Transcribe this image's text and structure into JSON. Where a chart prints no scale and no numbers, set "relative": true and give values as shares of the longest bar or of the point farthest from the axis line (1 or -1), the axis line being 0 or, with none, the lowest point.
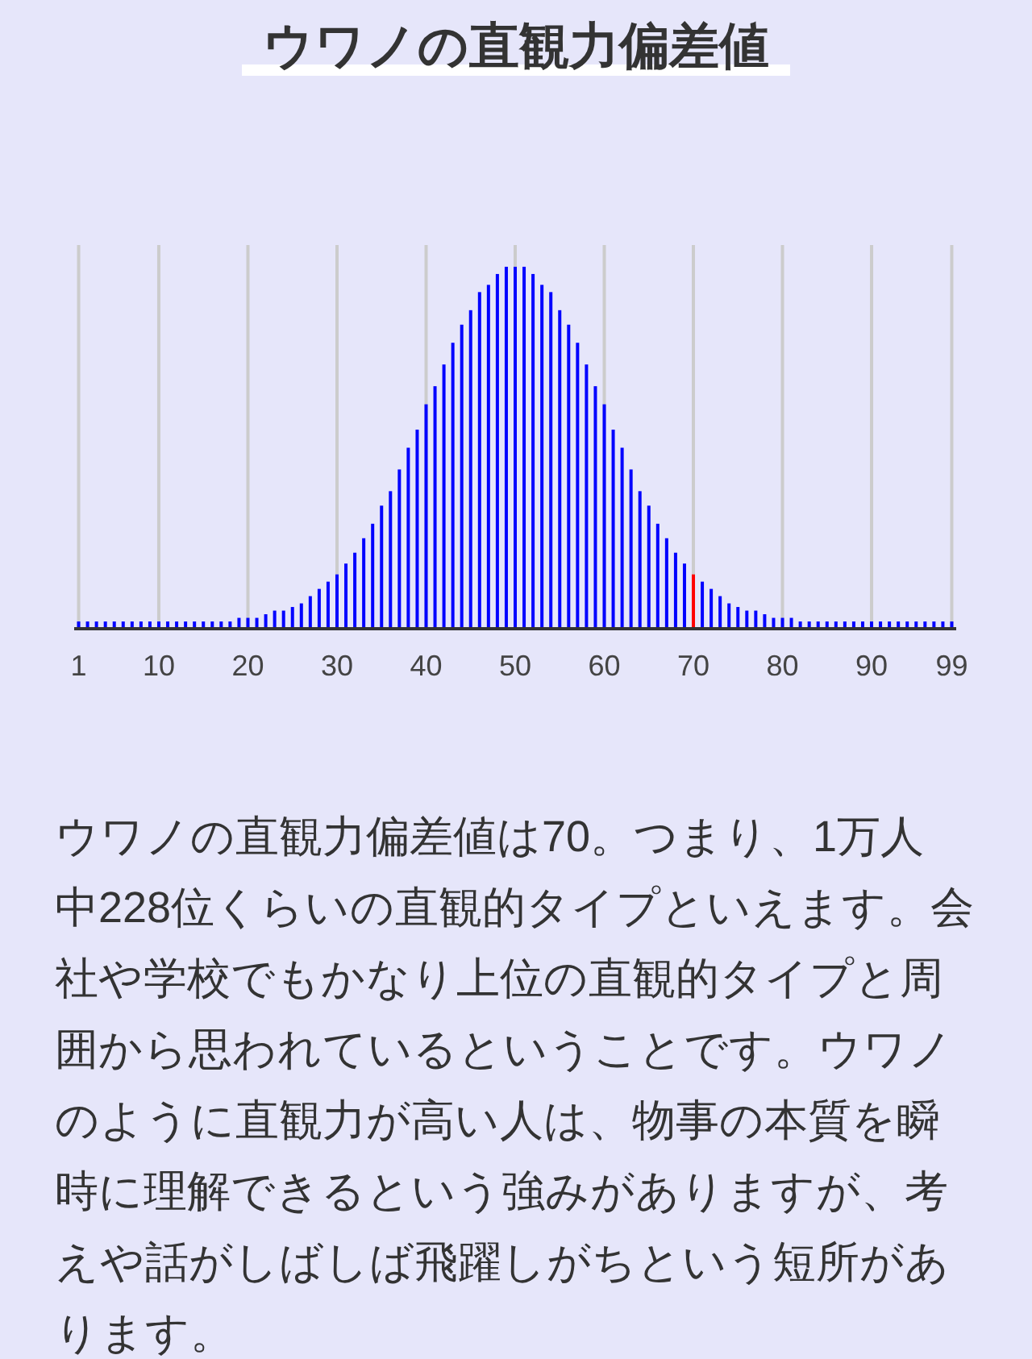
{
  "chart_data": {
    "type": "bar",
    "title": "ウワノの直観力偏差値",
    "x": [
      1,
      2,
      3,
      4,
      5,
      6,
      7,
      8,
      9,
      10,
      11,
      12,
      13,
      14,
      15,
      16,
      17,
      18,
      19,
      20,
      21,
      22,
      23,
      24,
      25,
      26,
      27,
      28,
      29,
      30,
      31,
      32,
      33,
      34,
      35,
      36,
      37,
      38,
      39,
      40,
      41,
      42,
      43,
      44,
      45,
      46,
      47,
      48,
      49,
      50,
      51,
      52,
      53,
      54,
      55,
      56,
      57,
      58,
      59,
      60,
      61,
      62,
      63,
      64,
      65,
      66,
      67,
      68,
      69,
      70,
      71,
      72,
      73,
      74,
      75,
      76,
      77,
      78,
      79,
      80,
      81,
      82,
      83,
      84,
      85,
      86,
      87,
      88,
      89,
      90,
      91,
      92,
      93,
      94,
      95,
      96,
      97,
      98,
      99
    ],
    "values": [
      0.02,
      0.02,
      0.02,
      0.02,
      0.02,
      0.02,
      0.02,
      0.02,
      0.02,
      0.02,
      0.02,
      0.02,
      0.02,
      0.02,
      0.02,
      0.02,
      0.02,
      0.02,
      0.03,
      0.03,
      0.03,
      0.04,
      0.05,
      0.05,
      0.06,
      0.07,
      0.09,
      0.11,
      0.13,
      0.15,
      0.18,
      0.21,
      0.25,
      0.29,
      0.34,
      0.38,
      0.44,
      0.5,
      0.55,
      0.62,
      0.67,
      0.73,
      0.79,
      0.84,
      0.88,
      0.93,
      0.95,
      0.98,
      1,
      1,
      1,
      0.98,
      0.95,
      0.93,
      0.88,
      0.84,
      0.79,
      0.73,
      0.67,
      0.62,
      0.55,
      0.5,
      0.44,
      0.38,
      0.34,
      0.29,
      0.25,
      0.21,
      0.18,
      0.15,
      0.13,
      0.11,
      0.09,
      0.07,
      0.06,
      0.05,
      0.05,
      0.04,
      0.03,
      0.03,
      0.03,
      0.02,
      0.02,
      0.02,
      0.02,
      0.02,
      0.02,
      0.02,
      0.02,
      0.02,
      0.02,
      0.02,
      0.02,
      0.02,
      0.02,
      0.02,
      0.02,
      0.02,
      0.02
    ],
    "colors": [
      "#0000ff",
      "#0000ff",
      "#0000ff",
      "#0000ff",
      "#0000ff",
      "#0000ff",
      "#0000ff",
      "#0000ff",
      "#0000ff",
      "#0000ff",
      "#0000ff",
      "#0000ff",
      "#0000ff",
      "#0000ff",
      "#0000ff",
      "#0000ff",
      "#0000ff",
      "#0000ff",
      "#0000ff",
      "#0000ff",
      "#0000ff",
      "#0000ff",
      "#0000ff",
      "#0000ff",
      "#0000ff",
      "#0000ff",
      "#0000ff",
      "#0000ff",
      "#0000ff",
      "#0000ff",
      "#0000ff",
      "#0000ff",
      "#0000ff",
      "#0000ff",
      "#0000ff",
      "#0000ff",
      "#0000ff",
      "#0000ff",
      "#0000ff",
      "#0000ff",
      "#0000ff",
      "#0000ff",
      "#0000ff",
      "#0000ff",
      "#0000ff",
      "#0000ff",
      "#0000ff",
      "#0000ff",
      "#0000ff",
      "#0000ff",
      "#0000ff",
      "#0000ff",
      "#0000ff",
      "#0000ff",
      "#0000ff",
      "#0000ff",
      "#0000ff",
      "#0000ff",
      "#0000ff",
      "#0000ff",
      "#0000ff",
      "#0000ff",
      "#0000ff",
      "#0000ff",
      "#0000ff",
      "#0000ff",
      "#0000ff",
      "#0000ff",
      "#0000ff",
      "#ff0000",
      "#0000ff",
      "#0000ff",
      "#0000ff",
      "#0000ff",
      "#0000ff",
      "#0000ff",
      "#0000ff",
      "#0000ff",
      "#0000ff",
      "#0000ff",
      "#0000ff",
      "#0000ff",
      "#0000ff",
      "#0000ff",
      "#0000ff",
      "#0000ff",
      "#0000ff",
      "#0000ff",
      "#0000ff",
      "#0000ff",
      "#0000ff",
      "#0000ff",
      "#0000ff",
      "#0000ff",
      "#0000ff",
      "#0000ff",
      "#0000ff",
      "#0000ff",
      "#0000ff"
    ],
    "relative": true,
    "xlim": [
      0.5,
      99.5
    ],
    "xticks": [
      1,
      10,
      20,
      30,
      40,
      50,
      60,
      70,
      80,
      90,
      99
    ],
    "grid": "x",
    "annotations": [
      "ウワノの直観力偏差値は70。つまり、1万人中228位くらいの直観的タイプといえます。会社や学校でもかなり上位の直観的タイプと周囲から思われているということです。ウワノのように直観力が高い人は、物事の本質を瞬時に理解できるという強みがありますが、考えや話がしばしば飛躍しがちという短所があります。"
    ]
  }
}
